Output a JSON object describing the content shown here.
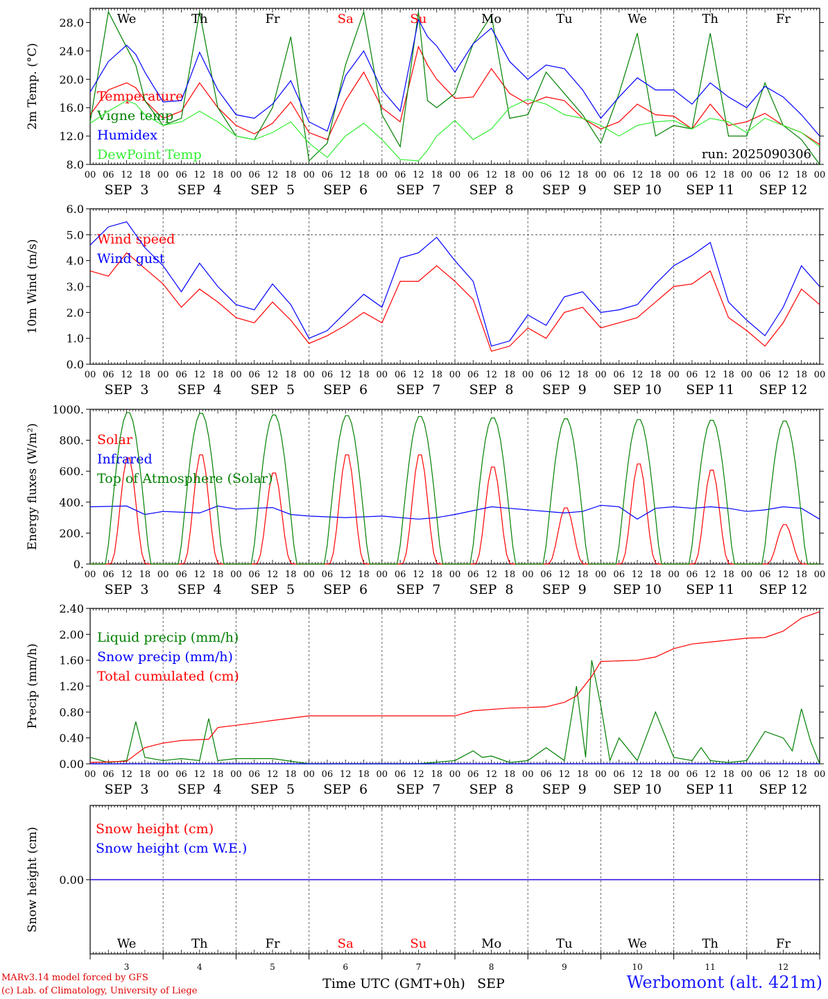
{
  "run_label": "run: 2025090306",
  "footer": {
    "model": "MARv3.14 model forced by GFS",
    "lab": "(c) Lab. of Climatology, University of Liege",
    "station": "Werbomont (alt. 421m)"
  },
  "x_axis_title": "Time UTC (GMT+0h)",
  "x_axis_month": "SEP",
  "date_labels": [
    "SEP  3",
    "SEP  4",
    "SEP  5",
    "SEP  6",
    "SEP  7",
    "SEP  8",
    "SEP  9",
    "SEP 10",
    "SEP 11",
    "SEP 12"
  ],
  "day_numbers": [
    "3",
    "4",
    "5",
    "6",
    "7",
    "8",
    "9",
    "10",
    "11",
    "12"
  ],
  "weekdays": [
    {
      "label": "We",
      "color": "#000000"
    },
    {
      "label": "Th",
      "color": "#000000"
    },
    {
      "label": "Fr",
      "color": "#000000"
    },
    {
      "label": "Sa",
      "color": "#ff0000"
    },
    {
      "label": "Su",
      "color": "#ff0000"
    },
    {
      "label": "Mo",
      "color": "#000000"
    },
    {
      "label": "Tu",
      "color": "#000000"
    },
    {
      "label": "We",
      "color": "#000000"
    },
    {
      "label": "Th",
      "color": "#000000"
    },
    {
      "label": "Fr",
      "color": "#000000"
    }
  ],
  "hour_labels": [
    "00",
    "06",
    "12",
    "18"
  ],
  "colors": {
    "red": "#ff0000",
    "green": "#008000",
    "blue": "#0000ff",
    "lightgreen": "#33ee33"
  },
  "chart_data": [
    {
      "type": "line",
      "ylabel": "2m Temp. (°C)",
      "ylim": [
        8,
        30
      ],
      "ticks": [
        8,
        12,
        16,
        20,
        24,
        28
      ],
      "tick_labels": [
        "8.0",
        "12.0",
        "16.0",
        "20.0",
        "24.0",
        "28.0"
      ],
      "x_hours": [
        0,
        6,
        12,
        15,
        18,
        24,
        30,
        36,
        42,
        48,
        54,
        60,
        66,
        72,
        78,
        84,
        90,
        96,
        102,
        108,
        111,
        114,
        120,
        126,
        132,
        138,
        144,
        150,
        156,
        162,
        168,
        174,
        180,
        186,
        192,
        198,
        204,
        210,
        216,
        222,
        228,
        234,
        240
      ],
      "series": [
        {
          "name": "Temperature",
          "color": "red",
          "values": [
            15,
            18.5,
            19.5,
            18.8,
            17,
            14.5,
            15.5,
            19.5,
            16,
            13.5,
            12.3,
            13.8,
            16.8,
            12.5,
            11.5,
            17,
            21,
            16,
            14,
            24.6,
            22,
            20,
            17.3,
            17.5,
            21.5,
            18,
            16.5,
            17.5,
            17,
            14.5,
            13,
            14,
            16.5,
            15,
            14.8,
            13,
            16.5,
            13.5,
            14,
            15.2,
            13.5,
            12.5,
            10.8
          ]
        },
        {
          "name": "Vigne temp",
          "color": "green",
          "values": [
            14,
            29.5,
            24.5,
            22,
            17,
            13.5,
            14.5,
            29.5,
            16,
            12,
            11.5,
            16,
            26,
            8.5,
            11,
            22,
            29.5,
            15,
            10.5,
            29.5,
            17,
            16,
            18,
            25,
            29,
            14.5,
            15,
            21,
            18,
            15,
            11,
            18,
            26.5,
            12,
            13.5,
            13,
            26.5,
            12,
            12,
            19.5,
            13.5,
            11.5,
            8
          ]
        },
        {
          "name": "Humidex",
          "color": "blue",
          "values": [
            18.2,
            22.5,
            24.8,
            23.5,
            21,
            16.8,
            17,
            23.8,
            18.5,
            15,
            14.5,
            16.5,
            19.8,
            14,
            12.7,
            20.5,
            24,
            18.5,
            15.5,
            28.4,
            26,
            24.7,
            21,
            25,
            27.2,
            22.5,
            20,
            22,
            21.5,
            18.5,
            14.5,
            17.5,
            20.2,
            18.5,
            18.5,
            16.5,
            19.5,
            17.5,
            16,
            19,
            17.5,
            15,
            12
          ]
        },
        {
          "name": "DewPoint Temp",
          "color": "lightgreen",
          "values": [
            13.8,
            15.5,
            17,
            16.5,
            15,
            13.5,
            14,
            15.5,
            14,
            12,
            11.5,
            12.5,
            14,
            11,
            9,
            12,
            13.8,
            11.5,
            8.7,
            8.5,
            10,
            12,
            14.2,
            11.5,
            13,
            16,
            17.2,
            16.5,
            15,
            14.5,
            13.5,
            12,
            13.5,
            14,
            14.2,
            13,
            14.5,
            14,
            12.5,
            14.5,
            13.5,
            12.5,
            10.5
          ]
        }
      ]
    },
    {
      "type": "line",
      "ylabel": "10m Wind (m/s)",
      "ylim": [
        0,
        6
      ],
      "ticks": [
        0,
        1,
        2,
        3,
        4,
        5,
        6
      ],
      "tick_labels": [
        "0.0",
        "1.0",
        "2.0",
        "3.0",
        "4.0",
        "5.0",
        "6.0"
      ],
      "dashed_line": 5,
      "x_hours": [
        0,
        6,
        12,
        18,
        24,
        30,
        36,
        42,
        48,
        54,
        60,
        66,
        72,
        78,
        84,
        90,
        96,
        102,
        108,
        114,
        120,
        126,
        132,
        138,
        144,
        150,
        156,
        162,
        168,
        174,
        180,
        186,
        192,
        198,
        204,
        210,
        216,
        222,
        228,
        234,
        240
      ],
      "series": [
        {
          "name": "Wind speed",
          "color": "red",
          "values": [
            3.6,
            3.4,
            4.3,
            3.7,
            3.1,
            2.2,
            2.9,
            2.4,
            1.8,
            1.6,
            2.4,
            1.7,
            0.8,
            1.1,
            1.5,
            2.0,
            1.6,
            3.2,
            3.2,
            3.8,
            3.2,
            2.5,
            0.5,
            0.7,
            1.4,
            1.0,
            2.0,
            2.2,
            1.4,
            1.6,
            1.8,
            2.4,
            3.0,
            3.1,
            3.6,
            1.8,
            1.3,
            0.7,
            1.6,
            2.9,
            2.3
          ]
        },
        {
          "name": "Wind gust",
          "color": "blue",
          "values": [
            4.6,
            5.3,
            5.5,
            4.5,
            3.8,
            2.8,
            3.9,
            3.0,
            2.3,
            2.1,
            3.1,
            2.3,
            1.0,
            1.3,
            2.0,
            2.7,
            2.2,
            4.1,
            4.3,
            4.9,
            4.0,
            3.2,
            0.7,
            0.9,
            1.9,
            1.5,
            2.6,
            2.8,
            2.0,
            2.1,
            2.3,
            3.1,
            3.8,
            4.2,
            4.7,
            2.4,
            1.7,
            1.1,
            2.2,
            3.8,
            3.0
          ]
        }
      ]
    },
    {
      "type": "line",
      "ylabel": "Energy fluxes (W/m²)",
      "ylim": [
        0,
        1000
      ],
      "ticks": [
        0,
        200,
        400,
        600,
        800,
        1000
      ],
      "tick_labels": [
        "0.",
        "200.",
        "400.",
        "600.",
        "800.",
        "1000."
      ],
      "series": [
        {
          "name": "Solar",
          "color": "red",
          "daily_peak": [
            700,
            720,
            600,
            720,
            720,
            640,
            370,
            660,
            620,
            260
          ]
        },
        {
          "name": "Infrared",
          "color": "blue",
          "x_hours": [
            0,
            12,
            18,
            24,
            36,
            42,
            48,
            60,
            66,
            72,
            84,
            96,
            108,
            114,
            120,
            132,
            138,
            144,
            156,
            162,
            168,
            174,
            180,
            186,
            192,
            198,
            204,
            210,
            216,
            222,
            228,
            234,
            240
          ],
          "values": [
            370,
            375,
            320,
            340,
            330,
            375,
            355,
            365,
            320,
            310,
            300,
            310,
            290,
            300,
            320,
            370,
            360,
            350,
            330,
            340,
            380,
            370,
            290,
            360,
            370,
            360,
            370,
            360,
            340,
            350,
            370,
            360,
            290
          ]
        },
        {
          "name": "Top of Atmosphere (Solar)",
          "color": "green",
          "daily_peak": [
            985,
            980,
            970,
            965,
            960,
            950,
            945,
            940,
            935,
            930
          ]
        }
      ]
    },
    {
      "type": "line",
      "ylabel": "Precip (mm/h)",
      "ylim": [
        0,
        2.4
      ],
      "ticks": [
        0,
        0.4,
        0.8,
        1.2,
        1.6,
        2.0,
        2.4
      ],
      "tick_labels": [
        "0.00",
        "0.40",
        "0.80",
        "1.20",
        "1.60",
        "2.00",
        "2.40"
      ],
      "series": [
        {
          "name": "Liquid precip (mm/h)",
          "color": "green",
          "x_hours": [
            0,
            6,
            12,
            15,
            18,
            24,
            30,
            36,
            39,
            42,
            48,
            60,
            72,
            84,
            96,
            108,
            120,
            126,
            129,
            132,
            138,
            144,
            150,
            156,
            160,
            163,
            165,
            168,
            171,
            174,
            180,
            186,
            192,
            198,
            201,
            204,
            210,
            216,
            222,
            228,
            231,
            234,
            237,
            240
          ],
          "values": [
            0.1,
            0.02,
            0.05,
            0.65,
            0.1,
            0.05,
            0.08,
            0.05,
            0.7,
            0.05,
            0.08,
            0.08,
            0,
            0,
            0,
            0,
            0.05,
            0.2,
            0.1,
            0.12,
            0.02,
            0.05,
            0.25,
            0.05,
            1.2,
            0.1,
            1.6,
            0.9,
            0.05,
            0.4,
            0.05,
            0.8,
            0.1,
            0.05,
            0.25,
            0.05,
            0.02,
            0.05,
            0.5,
            0.4,
            0.2,
            0.85,
            0.35,
            0
          ]
        },
        {
          "name": "Snow precip (mm/h)",
          "color": "blue",
          "x_hours": [
            0,
            240
          ],
          "values": [
            0,
            0
          ]
        },
        {
          "name": "Total cumulated (cm)",
          "color": "red",
          "x_hours": [
            0,
            12,
            18,
            24,
            30,
            39,
            42,
            54,
            60,
            72,
            78,
            96,
            120,
            126,
            138,
            144,
            150,
            156,
            160,
            165,
            168,
            180,
            186,
            192,
            198,
            216,
            222,
            228,
            234,
            240
          ],
          "values": [
            0.02,
            0.04,
            0.25,
            0.32,
            0.36,
            0.38,
            0.56,
            0.63,
            0.67,
            0.74,
            0.74,
            0.74,
            0.74,
            0.82,
            0.86,
            0.87,
            0.88,
            0.95,
            1.05,
            1.35,
            1.58,
            1.6,
            1.65,
            1.78,
            1.85,
            1.94,
            1.95,
            2.05,
            2.25,
            2.35
          ]
        }
      ]
    },
    {
      "type": "line",
      "ylabel": "Snow height (cm)",
      "ylim": [
        -1,
        1
      ],
      "ticks": [
        0
      ],
      "tick_labels": [
        "0.00"
      ],
      "series": [
        {
          "name": "Snow height (cm)",
          "color": "red",
          "x_hours": [
            0,
            240
          ],
          "values": [
            0,
            0
          ]
        },
        {
          "name": "Snow height (cm W.E.)",
          "color": "blue",
          "x_hours": [
            0,
            240
          ],
          "values": [
            0,
            0
          ]
        }
      ]
    }
  ]
}
